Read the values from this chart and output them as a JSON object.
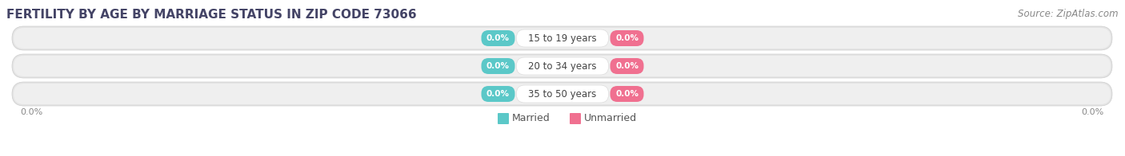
{
  "title": "FERTILITY BY AGE BY MARRIAGE STATUS IN ZIP CODE 73066",
  "source": "Source: ZipAtlas.com",
  "categories": [
    "15 to 19 years",
    "20 to 34 years",
    "35 to 50 years"
  ],
  "married_values": [
    "0.0%",
    "0.0%",
    "0.0%"
  ],
  "unmarried_values": [
    "0.0%",
    "0.0%",
    "0.0%"
  ],
  "married_teal": "#5bc8c8",
  "unmarried_pink": "#f07090",
  "bar_bg_light": "#e8e8e8",
  "bar_bg_dark": "#d8d8d8",
  "x_left_label": "0.0%",
  "x_right_label": "0.0%",
  "title_fontsize": 11,
  "source_fontsize": 8.5,
  "badge_label_fontsize": 7.5,
  "category_fontsize": 8.5,
  "legend_fontsize": 9,
  "axis_label_fontsize": 8,
  "fig_bg_color": "#ffffff",
  "title_color": "#444466",
  "source_color": "#888888",
  "axis_label_color": "#888888",
  "category_text_color": "#444444",
  "legend_text_color": "#555555"
}
